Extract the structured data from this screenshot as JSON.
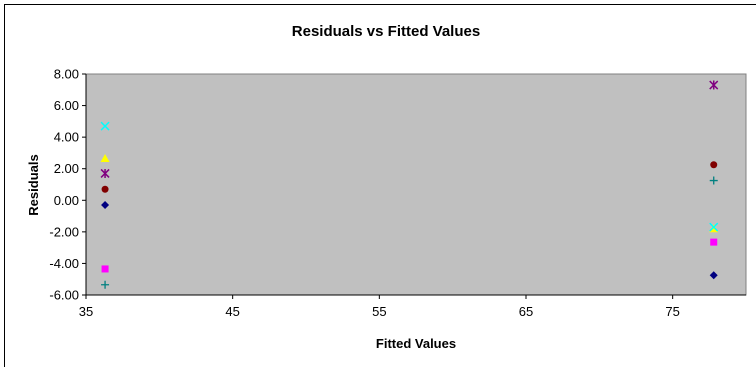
{
  "chart_data": {
    "type": "scatter",
    "title": "Residuals vs Fitted Values",
    "xlabel": "Fitted Values",
    "ylabel": "Residuals",
    "xlim": [
      35,
      80
    ],
    "ylim": [
      -6,
      8
    ],
    "xticks": [
      35,
      45,
      55,
      65,
      75
    ],
    "yticks": [
      -6,
      -4,
      -2,
      0,
      2,
      4,
      6,
      8
    ],
    "ytick_labels": [
      "-6.00",
      "-4.00",
      "-2.00",
      "0.00",
      "2.00",
      "4.00",
      "6.00",
      "8.00"
    ],
    "grid": false,
    "legend": "none",
    "plot_background": "#c0c0c0",
    "series": [
      {
        "marker": "diamond",
        "color": "#000080",
        "points": [
          [
            36.3,
            -0.3
          ],
          [
            77.8,
            -4.75
          ]
        ]
      },
      {
        "marker": "square",
        "color": "#ff00ff",
        "points": [
          [
            36.3,
            -4.35
          ],
          [
            77.8,
            -2.65
          ]
        ]
      },
      {
        "marker": "triangle",
        "color": "#ffff00",
        "points": [
          [
            36.3,
            2.65
          ],
          [
            77.8,
            -1.8
          ]
        ]
      },
      {
        "marker": "x",
        "color": "#00ffff",
        "points": [
          [
            36.3,
            4.7
          ],
          [
            77.8,
            -1.7
          ]
        ]
      },
      {
        "marker": "star",
        "color": "#800080",
        "points": [
          [
            36.3,
            1.7
          ],
          [
            77.8,
            7.3
          ]
        ]
      },
      {
        "marker": "circle",
        "color": "#800000",
        "points": [
          [
            36.3,
            0.7
          ],
          [
            77.8,
            2.25
          ]
        ]
      },
      {
        "marker": "plus",
        "color": "#008080",
        "points": [
          [
            36.3,
            -5.35
          ],
          [
            77.8,
            1.25
          ]
        ]
      }
    ]
  }
}
